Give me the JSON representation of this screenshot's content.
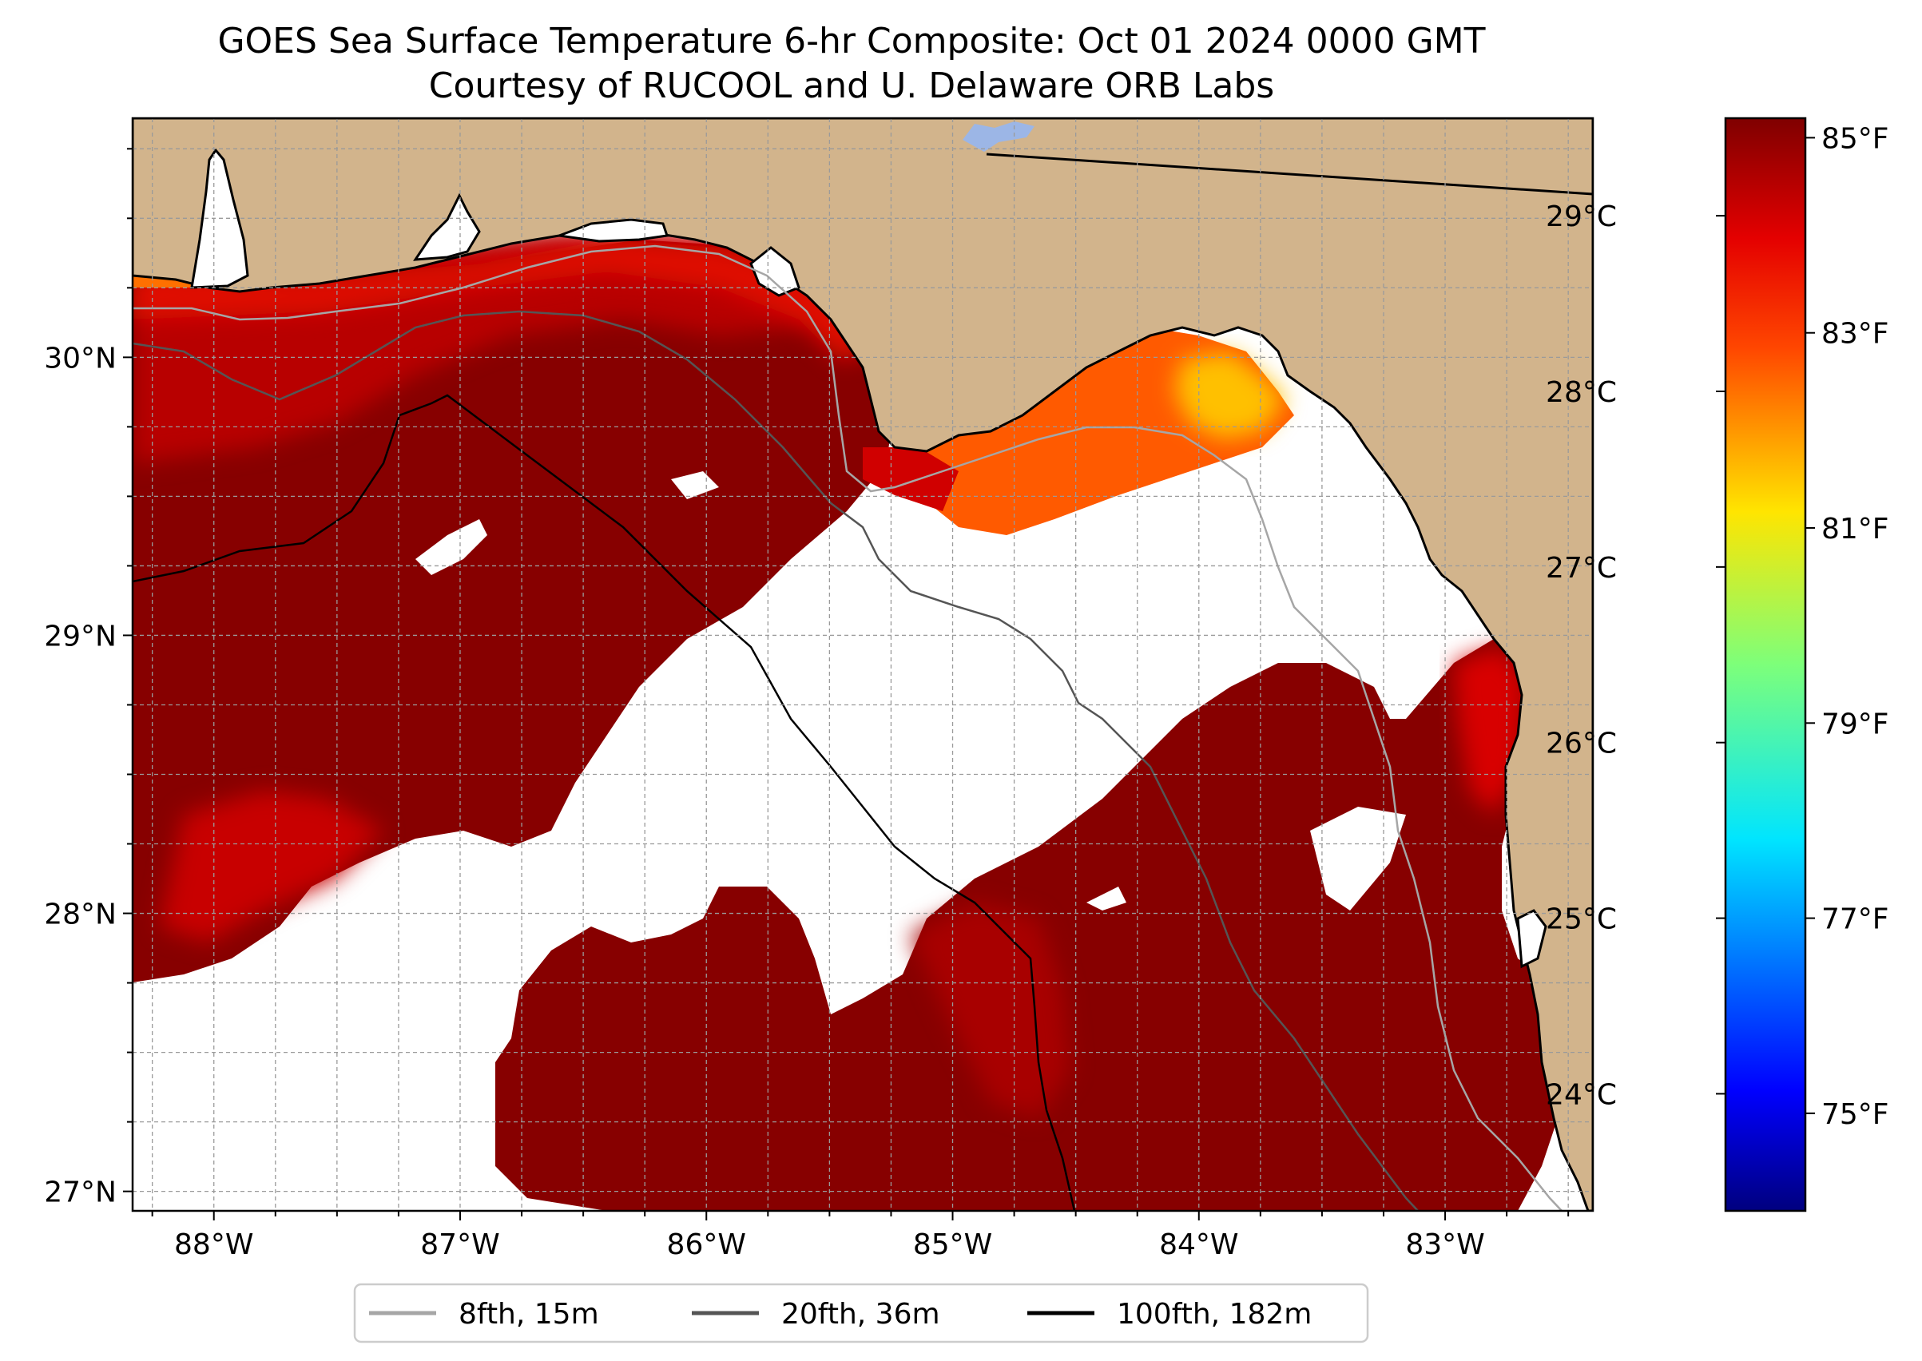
{
  "title": {
    "line1": "GOES Sea Surface Temperature 6-hr Composite: Oct 01 2024 0000 GMT",
    "line2": "Courtesy of RUCOOL and U. Delaware ORB Labs"
  },
  "map": {
    "lon_range": [
      -88.33,
      -82.4
    ],
    "lat_range": [
      26.93,
      30.86
    ],
    "x_ticks": [
      {
        "value": -88,
        "label": "88°W"
      },
      {
        "value": -87,
        "label": "87°W"
      },
      {
        "value": -86,
        "label": "86°W"
      },
      {
        "value": -85,
        "label": "85°W"
      },
      {
        "value": -84,
        "label": "84°W"
      },
      {
        "value": -83,
        "label": "83°W"
      }
    ],
    "y_ticks": [
      {
        "value": 27,
        "label": "27°N"
      },
      {
        "value": 28,
        "label": "28°N"
      },
      {
        "value": 29,
        "label": "29°N"
      },
      {
        "value": 30,
        "label": "30°N"
      }
    ],
    "grid": "dashed, every 0.25°",
    "colors": {
      "land": "#d2b48c",
      "water_no_data": "#ffffff",
      "lake": "#9cb6e6",
      "sst_warmest": "#800000",
      "sst_red": "#cc0000",
      "sst_orange": "#ff6600",
      "sst_yellow": "#ffcc00"
    }
  },
  "colorbar": {
    "colormap": "jet",
    "celsius_ticks": [
      {
        "value": 29,
        "label": "29°C"
      },
      {
        "value": 28,
        "label": "28°C"
      },
      {
        "value": 27,
        "label": "27°C"
      },
      {
        "value": 26,
        "label": "26°C"
      },
      {
        "value": 25,
        "label": "25°C"
      },
      {
        "value": 24,
        "label": "24°C"
      }
    ],
    "fahrenheit_ticks": [
      {
        "value": 85,
        "label": "85°F"
      },
      {
        "value": 83,
        "label": "83°F"
      },
      {
        "value": 81,
        "label": "81°F"
      },
      {
        "value": 79,
        "label": "79°F"
      },
      {
        "value": 77,
        "label": "77°F"
      },
      {
        "value": 75,
        "label": "75°F"
      }
    ],
    "range_f": [
      74.0,
      85.2
    ]
  },
  "legend": {
    "items": [
      {
        "label": "8fth, 15m",
        "color": "#a6a6a6"
      },
      {
        "label": "20fth, 36m",
        "color": "#555555"
      },
      {
        "label": "100fth, 182m",
        "color": "#000000"
      }
    ]
  }
}
